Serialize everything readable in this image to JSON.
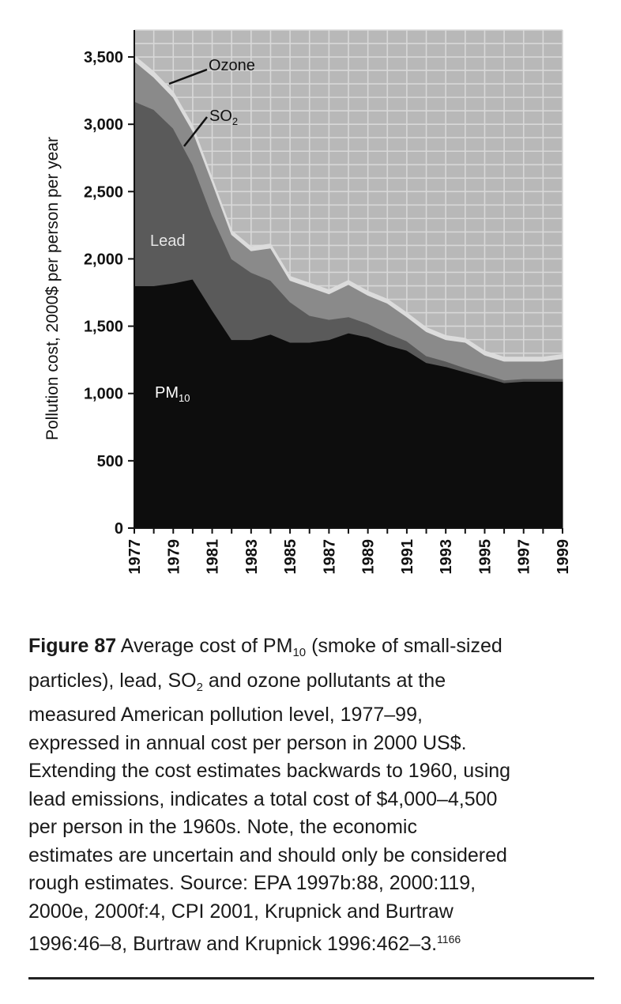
{
  "chart_data": {
    "type": "area",
    "stacked": true,
    "x": [
      1977,
      1978,
      1979,
      1980,
      1981,
      1982,
      1983,
      1984,
      1985,
      1986,
      1987,
      1988,
      1989,
      1990,
      1991,
      1992,
      1993,
      1994,
      1995,
      1996,
      1997,
      1998,
      1999
    ],
    "x_tick_labels": [
      "1977",
      "1979",
      "1981",
      "1983",
      "1985",
      "1987",
      "1989",
      "1991",
      "1993",
      "1995",
      "1997",
      "1999"
    ],
    "ylabel": "Pollution cost, 2000$ per person per year",
    "ylim": [
      0,
      3500
    ],
    "y_tick_labels": [
      "0",
      "500",
      "1,000",
      "1,500",
      "2,000",
      "2,500",
      "3,000",
      "3,500"
    ],
    "grid": true,
    "series": [
      {
        "name": "PM10",
        "label_main": "PM",
        "label_sub": "10",
        "color": "#0d0d0d",
        "values": [
          1800,
          1800,
          1820,
          1850,
          1620,
          1400,
          1400,
          1440,
          1380,
          1380,
          1400,
          1450,
          1420,
          1360,
          1320,
          1230,
          1200,
          1160,
          1120,
          1080,
          1090,
          1090,
          1090
        ]
      },
      {
        "name": "Lead",
        "label_main": "Lead",
        "color": "#5a5a5a",
        "values": [
          1370,
          1310,
          1150,
          850,
          700,
          600,
          500,
          400,
          300,
          200,
          150,
          120,
          100,
          90,
          70,
          50,
          40,
          30,
          25,
          20,
          20,
          20,
          20
        ]
      },
      {
        "name": "SO2",
        "label_main": "SO",
        "label_sub": "2",
        "color": "#8a8a8a",
        "values": [
          300,
          240,
          230,
          250,
          250,
          180,
          160,
          240,
          160,
          210,
          190,
          240,
          210,
          220,
          180,
          180,
          160,
          190,
          140,
          140,
          130,
          130,
          150
        ]
      },
      {
        "name": "Ozone",
        "label_main": "Ozone",
        "color": "#dcdcdc",
        "values": [
          40,
          40,
          40,
          40,
          30,
          30,
          30,
          30,
          30,
          30,
          30,
          30,
          30,
          30,
          30,
          30,
          30,
          30,
          30,
          30,
          30,
          30,
          30
        ]
      }
    ],
    "background_color": "#b8b8b8"
  },
  "caption": {
    "figure_label": "Figure 87",
    "lines": [
      [
        {
          "t": " Average cost of PM"
        },
        {
          "sub": "10"
        },
        {
          "t": " (smoke of small-sized"
        }
      ],
      [
        {
          "t": "particles), lead, SO"
        },
        {
          "sub": "2"
        },
        {
          "t": " and ozone pollutants at the"
        }
      ],
      [
        {
          "t": "measured American pollution level, 1977–99,"
        }
      ],
      [
        {
          "t": "expressed in annual cost per person in 2000 US$."
        }
      ],
      [
        {
          "t": "Extending the cost estimates backwards to 1960, using"
        }
      ],
      [
        {
          "t": "lead emissions, indicates a total cost of $4,000–4,500"
        }
      ],
      [
        {
          "t": "per person in the 1960s. Note, the economic"
        }
      ],
      [
        {
          "t": "estimates are uncertain and should only be considered"
        }
      ],
      [
        {
          "t": "rough estimates. Source: EPA 1997b:88, 2000:119,"
        }
      ],
      [
        {
          "t": "2000e, 2000f:4, CPI 2001, Krupnick and Burtraw"
        }
      ],
      [
        {
          "t": "1996:46–8, Burtraw and Krupnick 1996:462–3."
        },
        {
          "sup": "1166"
        }
      ]
    ]
  }
}
